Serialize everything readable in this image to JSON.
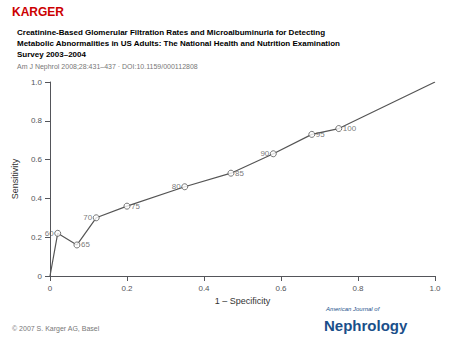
{
  "chart_data": {
    "type": "line",
    "title": "Creatinine-Based Glomerular Filtration Rates and Microalbuminuria for Detecting\nMetabolic Abnormalities in US Adults: The National Health and Nutrition Examination\nSurvey 2003–2004",
    "subtitle": "Am J Nephrol 2008;28:431–437 · DOI:10.1159/000112808",
    "xlabel": "1 – Specificity",
    "ylabel": "Sensitivity",
    "xlim": [
      0,
      1.0
    ],
    "ylim": [
      0,
      1.0
    ],
    "xticks": [
      0,
      0.2,
      0.4,
      0.6,
      0.8,
      {
        "value": 1.0,
        "label": "1.0"
      }
    ],
    "yticks": [
      0,
      0.2,
      0.4,
      0.6,
      0.8,
      {
        "value": 1.0,
        "label": "1.0"
      }
    ],
    "grid": false,
    "series": [
      {
        "type": "line",
        "x": [
          0.0,
          0.02,
          0.07,
          0.12,
          0.2,
          0.35,
          0.47,
          0.58,
          0.68,
          0.75,
          1.0
        ],
        "values": [
          0.0,
          0.22,
          0.16,
          0.3,
          0.36,
          0.46,
          0.53,
          0.63,
          0.73,
          0.76,
          1.0
        ],
        "color": "#555555",
        "marker": "none"
      },
      {
        "type": "scatter",
        "x": [
          0.02,
          0.07,
          0.12,
          0.2,
          0.35,
          0.47,
          0.58,
          0.68,
          0.75
        ],
        "values": [
          0.22,
          0.16,
          0.3,
          0.36,
          0.46,
          0.53,
          0.63,
          0.73,
          0.76
        ],
        "color": "#555555",
        "marker": "circle"
      }
    ],
    "annotations": [
      {
        "text": "60",
        "x": 0.02,
        "y": 0.22
      },
      {
        "text": "65",
        "x": 0.07,
        "y": 0.16
      },
      {
        "text": "70",
        "x": 0.12,
        "y": 0.3
      },
      {
        "text": "75",
        "x": 0.2,
        "y": 0.36
      },
      {
        "text": "80",
        "x": 0.35,
        "y": 0.46
      },
      {
        "text": "85",
        "x": 0.47,
        "y": 0.53
      },
      {
        "text": "90",
        "x": 0.58,
        "y": 0.63
      },
      {
        "text": "95",
        "x": 0.68,
        "y": 0.73
      },
      {
        "text": "100",
        "x": 0.75,
        "y": 0.76
      },
      {
        "text": "KARGER",
        "color": "#cc0000"
      },
      {
        "text": "© 2007 S. Karger AG, Basel"
      },
      {
        "text": "American Journal of",
        "color": "#1a4f8a"
      },
      {
        "text": "Nephrology",
        "color": "#1a4f8a"
      }
    ]
  }
}
